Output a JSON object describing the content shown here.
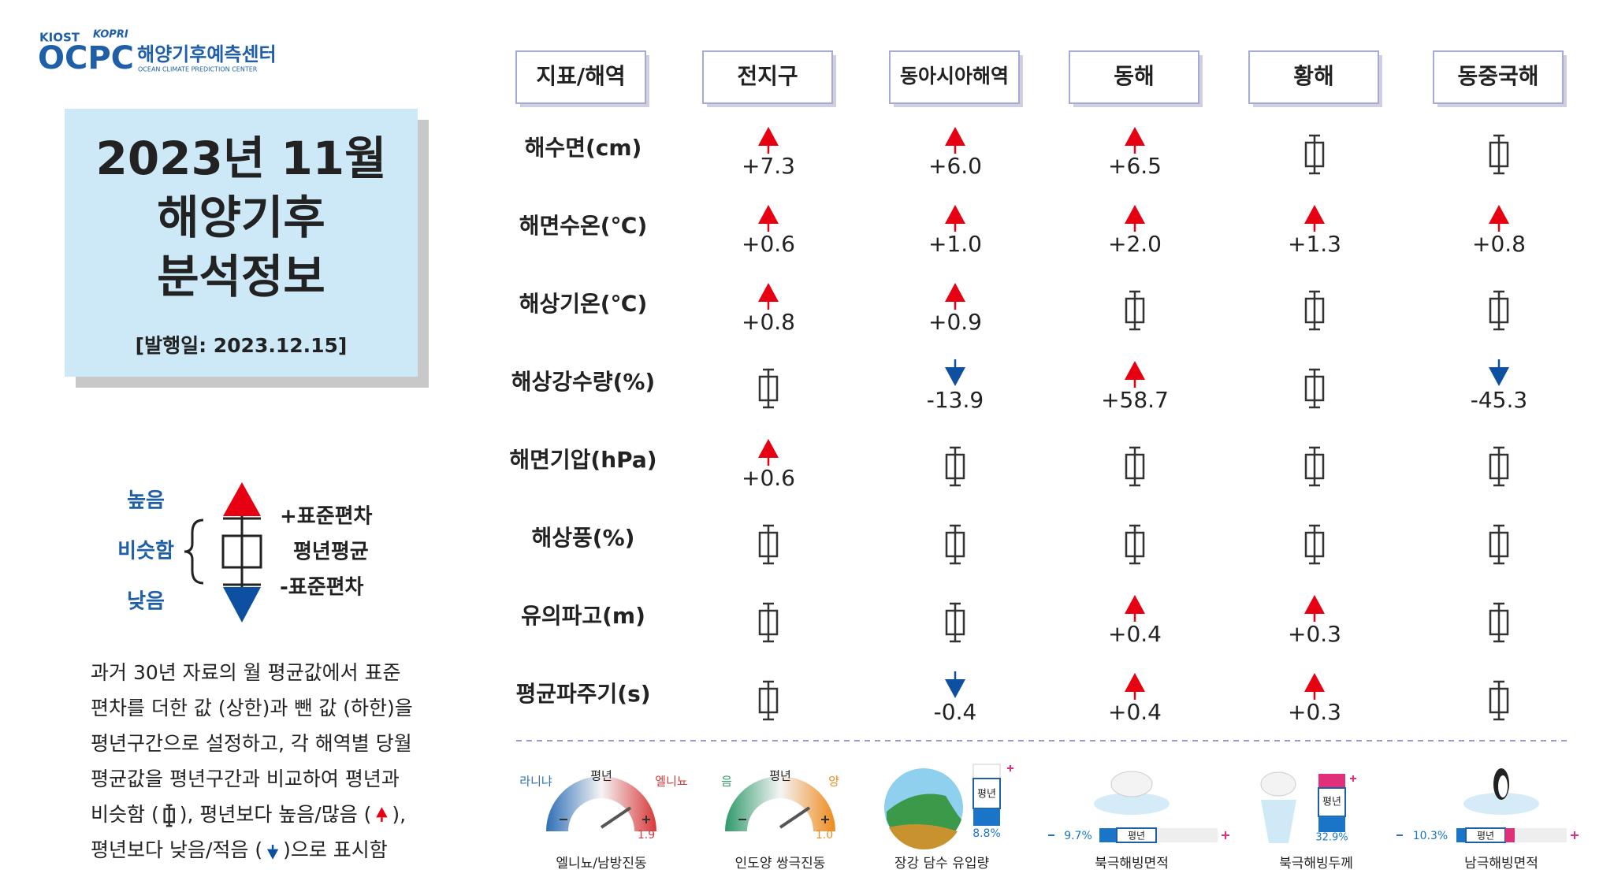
{
  "logo": {
    "kiost": "KIOST",
    "kopri": "KOPRI",
    "ocpc": "OCPC",
    "name": "해양기후예측센터",
    "english": "OCEAN CLIMATE PREDICTION CENTER"
  },
  "title": {
    "lines": [
      "2023년 11월",
      "해양기후",
      "분석정보"
    ],
    "issue_date": "[발행일: 2023.12.15]"
  },
  "legend": {
    "high": "높음",
    "similar": "비슷함",
    "low": "낮음",
    "plus_sd": "+표준편차",
    "mean": "평년평균",
    "minus_sd": "-표준편차"
  },
  "description": {
    "lines": [
      "과거 30년 자료의 월 평균값에서 표준",
      "편차를 더한 값 (상한)과 뺀 값 (하한)을",
      "평년구간으로 설정하고, 각 해역별 당월",
      "평균값을 평년구간과 비교하여 평년과"
    ],
    "line5": [
      "비슷함 (",
      "), 평년보다 높음/많음 (",
      "),"
    ],
    "line6": [
      "평년보다 낮음/적음 (",
      ")으로 표시함"
    ]
  },
  "table": {
    "header": [
      "지표/해역",
      "전지구",
      "동아시아해역",
      "동해",
      "황해",
      "동중국해"
    ],
    "rows": [
      {
        "label": "해수면(cm)",
        "cells": [
          {
            "status": "up",
            "text": "+7.3"
          },
          {
            "status": "up",
            "text": "+6.0"
          },
          {
            "status": "up",
            "text": "+6.5"
          },
          {
            "status": "normal"
          },
          {
            "status": "normal"
          }
        ]
      },
      {
        "label": "해면수온(℃)",
        "cells": [
          {
            "status": "up",
            "text": "+0.6"
          },
          {
            "status": "up",
            "text": "+1.0"
          },
          {
            "status": "up",
            "text": "+2.0"
          },
          {
            "status": "up",
            "text": "+1.3"
          },
          {
            "status": "up",
            "text": "+0.8"
          }
        ]
      },
      {
        "label": "해상기온(℃)",
        "cells": [
          {
            "status": "up",
            "text": "+0.8"
          },
          {
            "status": "up",
            "text": "+0.9"
          },
          {
            "status": "normal"
          },
          {
            "status": "normal"
          },
          {
            "status": "normal"
          }
        ]
      },
      {
        "label": "해상강수량(%)",
        "cells": [
          {
            "status": "normal"
          },
          {
            "status": "down",
            "text": "-13.9"
          },
          {
            "status": "up",
            "text": "+58.7"
          },
          {
            "status": "normal"
          },
          {
            "status": "down",
            "text": "-45.3"
          }
        ]
      },
      {
        "label": "해면기압(hPa)",
        "cells": [
          {
            "status": "up",
            "text": "+0.6"
          },
          {
            "status": "normal"
          },
          {
            "status": "normal"
          },
          {
            "status": "normal"
          },
          {
            "status": "normal"
          }
        ]
      },
      {
        "label": "해상풍(%)",
        "cells": [
          {
            "status": "normal"
          },
          {
            "status": "normal"
          },
          {
            "status": "normal"
          },
          {
            "status": "normal"
          },
          {
            "status": "normal"
          }
        ]
      },
      {
        "label": "유의파고(m)",
        "cells": [
          {
            "status": "normal"
          },
          {
            "status": "normal"
          },
          {
            "status": "up",
            "text": "+0.4"
          },
          {
            "status": "up",
            "text": "+0.3"
          },
          {
            "status": "normal"
          }
        ]
      },
      {
        "label": "평균파주기(s)",
        "cells": [
          {
            "status": "normal"
          },
          {
            "status": "down",
            "text": "-0.4"
          },
          {
            "status": "up",
            "text": "+0.4"
          },
          {
            "status": "up",
            "text": "+0.3"
          },
          {
            "status": "normal"
          }
        ]
      }
    ]
  },
  "indices": [
    {
      "name": "엘니뇨/남방진동",
      "left": "라니냐",
      "mid": "평년",
      "right": "엘니뇨",
      "value": "1.9"
    },
    {
      "name": "인도양 쌍극진동",
      "left": "음",
      "mid": "평년",
      "right": "양",
      "value": "1.0"
    },
    {
      "name": "장강 담수 유입량",
      "mid": "평년",
      "value": "8.8%"
    },
    {
      "name": "북극해빙면적",
      "mid": "평년",
      "value": "9.7%"
    },
    {
      "name": "북극해빙두께",
      "mid": "평년",
      "value": "32.9%"
    },
    {
      "name": "남극해빙면적",
      "mid": "평년",
      "value": "10.3%"
    }
  ]
}
